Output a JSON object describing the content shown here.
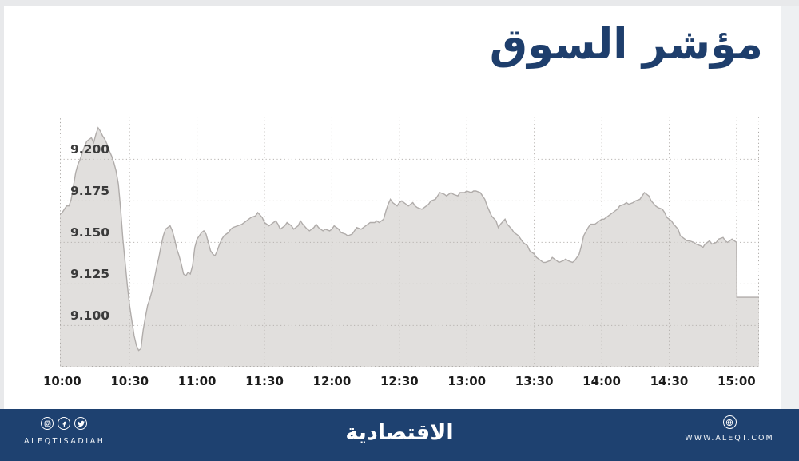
{
  "title": "مؤشر السوق",
  "colors": {
    "title_navy": "#1e3e6c",
    "footer_bg": "#1e4170",
    "frame_gray": "#e8e9eb",
    "area_fill": "#e1dfdd",
    "area_line": "#b0acaa",
    "grid_gray": "#b7b3b0"
  },
  "chart_data": {
    "type": "area",
    "title": "مؤشر السوق",
    "xlabel": "",
    "ylabel": "",
    "grid": true,
    "legend": "none",
    "x_tick_labels": [
      "10:00",
      "10:30",
      "11:00",
      "11:30",
      "12:00",
      "12:30",
      "13:00",
      "13:30",
      "14:00",
      "14:30",
      "15:00"
    ],
    "x_tick_minutes": [
      0,
      30,
      60,
      90,
      120,
      150,
      180,
      210,
      240,
      270,
      300
    ],
    "y_tick_labels": [
      "9.100",
      "9.125",
      "9.150",
      "9.175",
      "9.200"
    ],
    "y_tick_values": [
      9.1,
      9.125,
      9.15,
      9.175,
      9.2
    ],
    "ylim": [
      9.0752,
      9.2257
    ],
    "xlim_minutes": [
      -1,
      310
    ],
    "fill_color": "#e1dfdd",
    "line_color": "#b0acaa",
    "grid_color": "#b7b3b0",
    "series": [
      {
        "name": "market-index",
        "points": [
          [
            -1,
            9.167
          ],
          [
            0,
            9.168
          ],
          [
            1,
            9.17
          ],
          [
            2,
            9.172
          ],
          [
            3,
            9.172
          ],
          [
            4,
            9.176
          ],
          [
            5,
            9.184
          ],
          [
            6,
            9.192
          ],
          [
            7,
            9.197
          ],
          [
            8,
            9.2
          ],
          [
            9,
            9.204
          ],
          [
            10,
            9.208
          ],
          [
            11,
            9.211
          ],
          [
            12,
            9.212
          ],
          [
            13,
            9.213
          ],
          [
            14,
            9.21
          ],
          [
            15,
            9.215
          ],
          [
            16,
            9.219
          ],
          [
            17,
            9.217
          ],
          [
            18,
            9.214
          ],
          [
            19,
            9.212
          ],
          [
            20,
            9.209
          ],
          [
            21,
            9.205
          ],
          [
            22,
            9.202
          ],
          [
            23,
            9.198
          ],
          [
            24,
            9.193
          ],
          [
            25,
            9.185
          ],
          [
            26,
            9.17
          ],
          [
            27,
            9.152
          ],
          [
            28,
            9.138
          ],
          [
            29,
            9.124
          ],
          [
            30,
            9.112
          ],
          [
            31,
            9.103
          ],
          [
            32,
            9.094
          ],
          [
            33,
            9.088
          ],
          [
            34,
            9.085
          ],
          [
            35,
            9.086
          ],
          [
            36,
            9.097
          ],
          [
            37,
            9.105
          ],
          [
            38,
            9.112
          ],
          [
            39,
            9.116
          ],
          [
            40,
            9.121
          ],
          [
            41,
            9.128
          ],
          [
            42,
            9.135
          ],
          [
            43,
            9.141
          ],
          [
            44,
            9.148
          ],
          [
            45,
            9.154
          ],
          [
            46,
            9.158
          ],
          [
            47,
            9.159
          ],
          [
            48,
            9.16
          ],
          [
            49,
            9.157
          ],
          [
            50,
            9.152
          ],
          [
            51,
            9.146
          ],
          [
            52,
            9.142
          ],
          [
            53,
            9.137
          ],
          [
            54,
            9.131
          ],
          [
            55,
            9.13
          ],
          [
            56,
            9.132
          ],
          [
            57,
            9.131
          ],
          [
            58,
            9.136
          ],
          [
            59,
            9.147
          ],
          [
            60,
            9.152
          ],
          [
            61,
            9.154
          ],
          [
            62,
            9.156
          ],
          [
            63,
            9.157
          ],
          [
            64,
            9.155
          ],
          [
            65,
            9.15
          ],
          [
            66,
            9.145
          ],
          [
            67,
            9.143
          ],
          [
            68,
            9.142
          ],
          [
            69,
            9.145
          ],
          [
            70,
            9.149
          ],
          [
            71,
            9.152
          ],
          [
            72,
            9.154
          ],
          [
            73,
            9.155
          ],
          [
            74,
            9.156
          ],
          [
            75,
            9.158
          ],
          [
            76,
            9.159
          ],
          [
            78,
            9.16
          ],
          [
            80,
            9.161
          ],
          [
            82,
            9.163
          ],
          [
            84,
            9.165
          ],
          [
            86,
            9.166
          ],
          [
            87,
            9.168
          ],
          [
            89,
            9.165
          ],
          [
            90,
            9.162
          ],
          [
            92,
            9.16
          ],
          [
            93,
            9.161
          ],
          [
            95,
            9.163
          ],
          [
            96,
            9.161
          ],
          [
            97,
            9.158
          ],
          [
            99,
            9.16
          ],
          [
            100,
            9.162
          ],
          [
            102,
            9.16
          ],
          [
            103,
            9.158
          ],
          [
            105,
            9.16
          ],
          [
            106,
            9.163
          ],
          [
            107,
            9.161
          ],
          [
            109,
            9.158
          ],
          [
            110,
            9.157
          ],
          [
            112,
            9.159
          ],
          [
            113,
            9.161
          ],
          [
            114,
            9.159
          ],
          [
            116,
            9.157
          ],
          [
            117,
            9.158
          ],
          [
            119,
            9.157
          ],
          [
            120,
            9.158
          ],
          [
            121,
            9.16
          ],
          [
            123,
            9.158
          ],
          [
            124,
            9.156
          ],
          [
            126,
            9.155
          ],
          [
            127,
            9.154
          ],
          [
            129,
            9.155
          ],
          [
            130,
            9.157
          ],
          [
            131,
            9.159
          ],
          [
            133,
            9.158
          ],
          [
            134,
            9.159
          ],
          [
            136,
            9.161
          ],
          [
            137,
            9.162
          ],
          [
            139,
            9.162
          ],
          [
            140,
            9.163
          ],
          [
            141,
            9.162
          ],
          [
            143,
            9.164
          ],
          [
            144,
            9.169
          ],
          [
            145,
            9.173
          ],
          [
            146,
            9.176
          ],
          [
            147,
            9.174
          ],
          [
            149,
            9.172
          ],
          [
            150,
            9.174
          ],
          [
            151,
            9.175
          ],
          [
            153,
            9.173
          ],
          [
            154,
            9.172
          ],
          [
            156,
            9.174
          ],
          [
            157,
            9.172
          ],
          [
            158,
            9.171
          ],
          [
            160,
            9.17
          ],
          [
            161,
            9.171
          ],
          [
            163,
            9.173
          ],
          [
            164,
            9.175
          ],
          [
            166,
            9.176
          ],
          [
            167,
            9.178
          ],
          [
            168,
            9.18
          ],
          [
            170,
            9.179
          ],
          [
            171,
            9.178
          ],
          [
            173,
            9.18
          ],
          [
            174,
            9.179
          ],
          [
            176,
            9.178
          ],
          [
            177,
            9.18
          ],
          [
            179,
            9.18
          ],
          [
            180,
            9.181
          ],
          [
            182,
            9.18
          ],
          [
            183,
            9.181
          ],
          [
            184,
            9.181
          ],
          [
            186,
            9.18
          ],
          [
            187,
            9.178
          ],
          [
            188,
            9.176
          ],
          [
            189,
            9.172
          ],
          [
            190,
            9.169
          ],
          [
            191,
            9.166
          ],
          [
            193,
            9.163
          ],
          [
            194,
            9.159
          ],
          [
            195,
            9.161
          ],
          [
            197,
            9.164
          ],
          [
            198,
            9.161
          ],
          [
            200,
            9.158
          ],
          [
            201,
            9.156
          ],
          [
            203,
            9.154
          ],
          [
            204,
            9.152
          ],
          [
            205,
            9.15
          ],
          [
            207,
            9.148
          ],
          [
            208,
            9.145
          ],
          [
            210,
            9.143
          ],
          [
            211,
            9.141
          ],
          [
            213,
            9.139
          ],
          [
            214,
            9.138
          ],
          [
            215,
            9.138
          ],
          [
            217,
            9.139
          ],
          [
            218,
            9.141
          ],
          [
            220,
            9.139
          ],
          [
            221,
            9.138
          ],
          [
            223,
            9.139
          ],
          [
            224,
            9.14
          ],
          [
            225,
            9.139
          ],
          [
            227,
            9.138
          ],
          [
            228,
            9.139
          ],
          [
            230,
            9.143
          ],
          [
            231,
            9.148
          ],
          [
            232,
            9.154
          ],
          [
            234,
            9.159
          ],
          [
            235,
            9.161
          ],
          [
            237,
            9.161
          ],
          [
            238,
            9.162
          ],
          [
            240,
            9.164
          ],
          [
            241,
            9.164
          ],
          [
            242,
            9.165
          ],
          [
            244,
            9.167
          ],
          [
            245,
            9.168
          ],
          [
            247,
            9.17
          ],
          [
            248,
            9.172
          ],
          [
            250,
            9.173
          ],
          [
            251,
            9.174
          ],
          [
            252,
            9.173
          ],
          [
            254,
            9.174
          ],
          [
            255,
            9.175
          ],
          [
            257,
            9.176
          ],
          [
            258,
            9.178
          ],
          [
            259,
            9.18
          ],
          [
            261,
            9.178
          ],
          [
            262,
            9.175
          ],
          [
            264,
            9.172
          ],
          [
            265,
            9.171
          ],
          [
            267,
            9.17
          ],
          [
            268,
            9.168
          ],
          [
            269,
            9.165
          ],
          [
            271,
            9.163
          ],
          [
            272,
            9.161
          ],
          [
            274,
            9.158
          ],
          [
            275,
            9.154
          ],
          [
            277,
            9.152
          ],
          [
            278,
            9.151
          ],
          [
            279,
            9.151
          ],
          [
            281,
            9.15
          ],
          [
            282,
            9.149
          ],
          [
            284,
            9.148
          ],
          [
            285,
            9.147
          ],
          [
            286,
            9.149
          ],
          [
            288,
            9.151
          ],
          [
            289,
            9.149
          ],
          [
            291,
            9.15
          ],
          [
            292,
            9.152
          ],
          [
            294,
            9.153
          ],
          [
            295,
            9.151
          ],
          [
            296,
            9.15
          ],
          [
            298,
            9.152
          ],
          [
            299,
            9.151
          ],
          [
            300,
            9.15
          ],
          [
            300.2,
            9.117
          ],
          [
            310,
            9.117
          ]
        ]
      }
    ]
  },
  "footer": {
    "brand_latin": "ALEQTISADIAH",
    "brand_arabic": "الاقتصادية",
    "website": "WWW.ALEQT.COM",
    "social_icons": [
      "instagram-icon",
      "facebook-icon",
      "twitter-icon"
    ],
    "website_icon": "globe-icon"
  }
}
